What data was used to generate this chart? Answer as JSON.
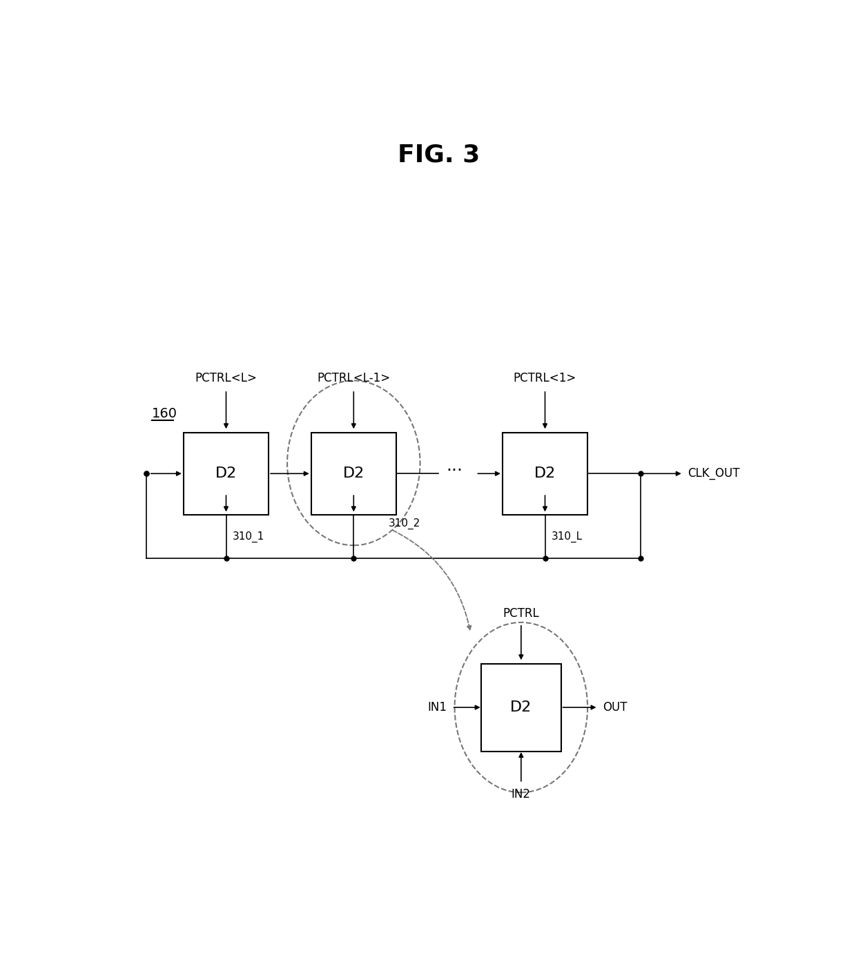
{
  "title": "FIG. 3",
  "title_fontsize": 26,
  "bg_color": "#ffffff",
  "line_color": "#000000",
  "dashed_color": "#777777",
  "box_color": "#ffffff",
  "label_160": "160",
  "ctrl1": "PCTRL<L>",
  "ctrl2": "PCTRL<L-1>",
  "ctrl3": "PCTRL<1>",
  "ctrl4": "PCTRL",
  "ref1": "310_1",
  "ref2": "310_2",
  "ref3": "310_L",
  "clk_out": "CLK_OUT",
  "in1": "IN1",
  "in2": "IN2",
  "out": "OUT",
  "dots": "···"
}
